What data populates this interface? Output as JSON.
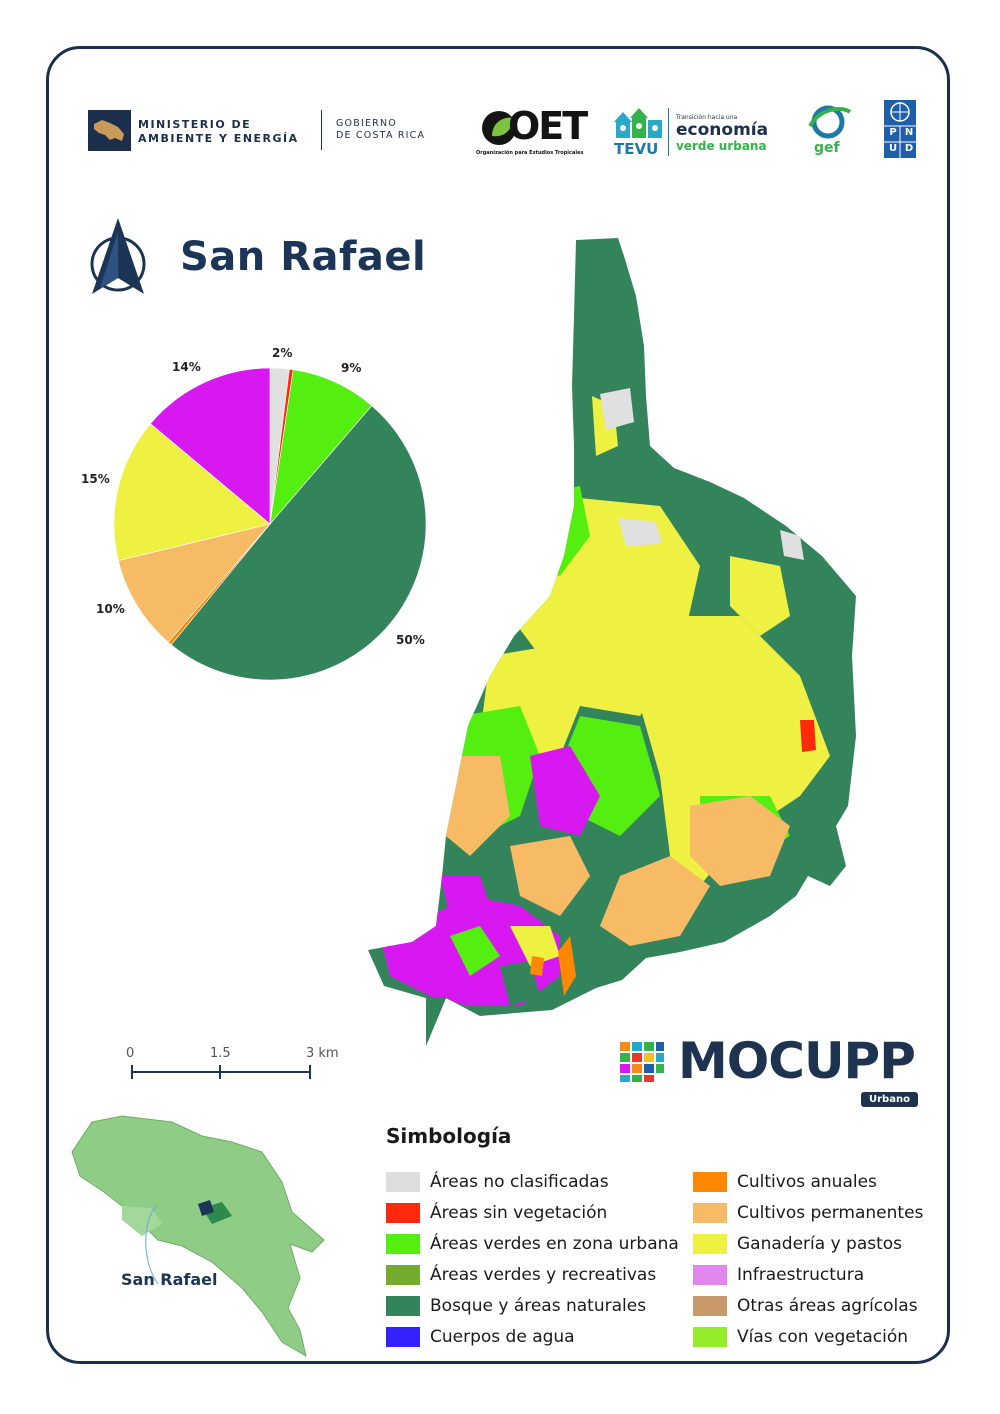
{
  "title": "San Rafael",
  "logos": {
    "minae_line1": "MINISTERIO DE",
    "minae_line2": "AMBIENTE Y ENERGÍA",
    "gob_line1": "GOBIERNO",
    "gob_line2": "DE COSTA RICA",
    "oet_name": "OET",
    "oet_sub": "Organización para Estudios Tropicales",
    "tevu_name": "TEVU",
    "tevu_line1": "Transición hacia una",
    "tevu_line2": "economía",
    "tevu_line3": "verde urbana",
    "gef_name": "gef",
    "pnud_letters": [
      "P",
      "N",
      "U",
      "D"
    ],
    "mocupp_name": "MOCUPP",
    "mocupp_badge": "Urbano"
  },
  "chart_data": {
    "type": "pie",
    "slices": [
      {
        "category": "Áreas no clasificadas",
        "value": 2,
        "label": "2%",
        "color": "#e0e0e0"
      },
      {
        "category": "Áreas sin vegetación",
        "value": 0.4,
        "label": "",
        "color": "#ff2a0d"
      },
      {
        "category": "Áreas verdes en zona urbana",
        "value": 9,
        "label": "9%",
        "color": "#55ee11"
      },
      {
        "category": "Bosque y áreas naturales",
        "value": 50,
        "label": "50%",
        "color": "#33845a"
      },
      {
        "category": "Cultivos anuales",
        "value": 0.4,
        "label": "",
        "color": "#ff8800"
      },
      {
        "category": "Cultivos permanentes",
        "value": 10,
        "label": "10%",
        "color": "#f6bb64"
      },
      {
        "category": "Ganadería y pastos",
        "value": 15,
        "label": "15%",
        "color": "#eef142"
      },
      {
        "category": "Infraestructura",
        "value": 14,
        "label": "14%",
        "color": "#d818f0"
      }
    ]
  },
  "scale_bar": {
    "labels": [
      "0",
      "1.5",
      "3 km"
    ]
  },
  "legend": {
    "title": "Simbología",
    "left": [
      {
        "label": "Áreas no clasificadas",
        "color": "#dedede"
      },
      {
        "label": "Áreas sin vegetación",
        "color": "#ff2a0d"
      },
      {
        "label": "Áreas verdes en zona urbana",
        "color": "#55ee11"
      },
      {
        "label": "Áreas verdes y recreativas",
        "color": "#73aa2f"
      },
      {
        "label": "Bosque y áreas naturales",
        "color": "#33845a"
      },
      {
        "label": "Cuerpos de agua",
        "color": "#3322ff"
      }
    ],
    "right": [
      {
        "label": "Cultivos anuales",
        "color": "#ff8800"
      },
      {
        "label": "Cultivos permanentes",
        "color": "#f6bb64"
      },
      {
        "label": "Ganadería y pastos",
        "color": "#eef142"
      },
      {
        "label": "Infraestructura",
        "color": "#e186ec"
      },
      {
        "label": "Otras áreas agrícolas",
        "color": "#c8996b"
      },
      {
        "label": "Vías con vegetación",
        "color": "#95ec2a"
      }
    ]
  },
  "inset": {
    "label": "San Rafael"
  },
  "colors": {
    "frame": "#1c2f4d",
    "title": "#1c3557"
  }
}
